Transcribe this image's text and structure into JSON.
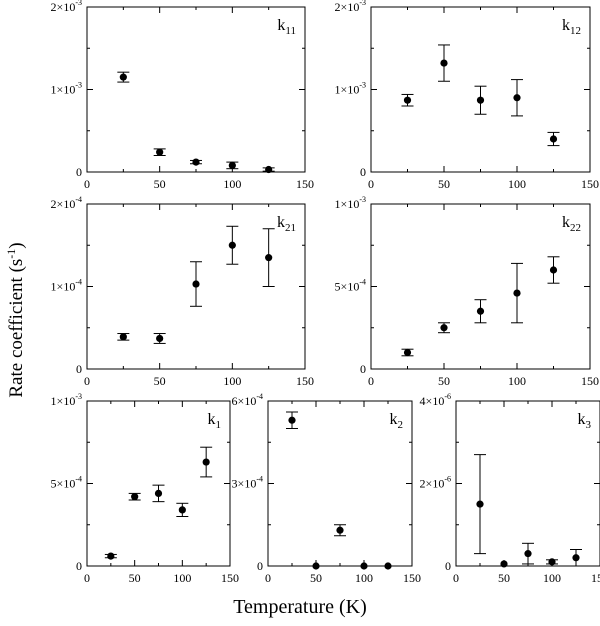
{
  "figure": {
    "ylabel": "Rate coefficient (s⁻¹)",
    "ylabel_main": "Rate coefficient (s",
    "ylabel_sup": "-1",
    "ylabel_close": ")",
    "xlabel": "Temperature (K)"
  },
  "chart_data": [
    {
      "type": "scatter",
      "panel": "k11",
      "label_main": "k",
      "label_sub": "11",
      "xlim": [
        0,
        150
      ],
      "xticks": [
        "0",
        "50",
        "100",
        "150"
      ],
      "ylim": [
        0,
        0.002
      ],
      "yticks": [
        {
          "value": 0,
          "mant": "0",
          "exp": ""
        },
        {
          "value": 0.001,
          "mant": "1×10",
          "exp": "-3"
        },
        {
          "value": 0.002,
          "mant": "2×10",
          "exp": "-3"
        }
      ],
      "points": [
        {
          "x": 25,
          "y": 0.00115,
          "err": 6e-05
        },
        {
          "x": 50,
          "y": 0.00024,
          "err": 4e-05
        },
        {
          "x": 75,
          "y": 0.00012,
          "err": 2e-05
        },
        {
          "x": 100,
          "y": 8e-05,
          "err": 4e-05
        },
        {
          "x": 125,
          "y": 3e-05,
          "err": 2e-05
        }
      ]
    },
    {
      "type": "scatter",
      "panel": "k12",
      "label_main": "k",
      "label_sub": "12",
      "xlim": [
        0,
        150
      ],
      "xticks": [
        "0",
        "50",
        "100",
        "150"
      ],
      "ylim": [
        0,
        0.002
      ],
      "yticks": [
        {
          "value": 0,
          "mant": "0",
          "exp": ""
        },
        {
          "value": 0.001,
          "mant": "1×10",
          "exp": "-3"
        },
        {
          "value": 0.002,
          "mant": "2×10",
          "exp": "-3"
        }
      ],
      "points": [
        {
          "x": 25,
          "y": 0.00087,
          "err": 7e-05
        },
        {
          "x": 50,
          "y": 0.00132,
          "err": 0.00022
        },
        {
          "x": 75,
          "y": 0.00087,
          "err": 0.00017
        },
        {
          "x": 100,
          "y": 0.0009,
          "err": 0.00022
        },
        {
          "x": 125,
          "y": 0.0004,
          "err": 8e-05
        }
      ]
    },
    {
      "type": "scatter",
      "panel": "k21",
      "label_main": "k",
      "label_sub": "21",
      "xlim": [
        0,
        150
      ],
      "xticks": [
        "0",
        "50",
        "100",
        "150"
      ],
      "ylim": [
        0,
        0.0002
      ],
      "yticks": [
        {
          "value": 0,
          "mant": "0",
          "exp": ""
        },
        {
          "value": 0.0001,
          "mant": "1×10",
          "exp": "-4"
        },
        {
          "value": 0.0002,
          "mant": "2×10",
          "exp": "-4"
        }
      ],
      "points": [
        {
          "x": 25,
          "y": 3.9e-05,
          "err": 4e-06
        },
        {
          "x": 50,
          "y": 3.7e-05,
          "err": 6e-06
        },
        {
          "x": 75,
          "y": 0.000103,
          "err": 2.7e-05
        },
        {
          "x": 100,
          "y": 0.00015,
          "err": 2.3e-05
        },
        {
          "x": 125,
          "y": 0.000135,
          "err": 3.5e-05
        }
      ]
    },
    {
      "type": "scatter",
      "panel": "k22",
      "label_main": "k",
      "label_sub": "22",
      "xlim": [
        0,
        150
      ],
      "xticks": [
        "0",
        "50",
        "100",
        "150"
      ],
      "ylim": [
        0,
        0.001
      ],
      "yticks": [
        {
          "value": 0,
          "mant": "0",
          "exp": ""
        },
        {
          "value": 0.0005,
          "mant": "5×10",
          "exp": "-4"
        },
        {
          "value": 0.001,
          "mant": "1×10",
          "exp": "-3"
        }
      ],
      "points": [
        {
          "x": 25,
          "y": 0.0001,
          "err": 2e-05
        },
        {
          "x": 50,
          "y": 0.00025,
          "err": 3e-05
        },
        {
          "x": 75,
          "y": 0.00035,
          "err": 7e-05
        },
        {
          "x": 100,
          "y": 0.00046,
          "err": 0.00018
        },
        {
          "x": 125,
          "y": 0.0006,
          "err": 8e-05
        }
      ]
    },
    {
      "type": "scatter",
      "panel": "k1",
      "label_main": "k",
      "label_sub": "1",
      "xlim": [
        0,
        150
      ],
      "xticks": [
        "0",
        "50",
        "100",
        "150"
      ],
      "ylim": [
        0,
        0.001
      ],
      "yticks": [
        {
          "value": 0,
          "mant": "0",
          "exp": ""
        },
        {
          "value": 0.0005,
          "mant": "5×10",
          "exp": "-4"
        },
        {
          "value": 0.001,
          "mant": "1×10",
          "exp": "-3"
        }
      ],
      "points": [
        {
          "x": 25,
          "y": 6e-05,
          "err": 1e-05
        },
        {
          "x": 50,
          "y": 0.00042,
          "err": 2e-05
        },
        {
          "x": 75,
          "y": 0.00044,
          "err": 5e-05
        },
        {
          "x": 100,
          "y": 0.00034,
          "err": 4e-05
        },
        {
          "x": 125,
          "y": 0.00063,
          "err": 9e-05
        }
      ]
    },
    {
      "type": "scatter",
      "panel": "k2",
      "label_main": "k",
      "label_sub": "2",
      "xlim": [
        0,
        150
      ],
      "xticks": [
        "0",
        "50",
        "100",
        "150"
      ],
      "ylim": [
        0,
        0.0006
      ],
      "yticks": [
        {
          "value": 0,
          "mant": "0",
          "exp": ""
        },
        {
          "value": 0.0003,
          "mant": "3×10",
          "exp": "-4"
        },
        {
          "value": 0.0006,
          "mant": "6×10",
          "exp": "-4"
        }
      ],
      "points": [
        {
          "x": 25,
          "y": 0.00053,
          "err": 3e-05
        },
        {
          "x": 50,
          "y": 0,
          "err": 0
        },
        {
          "x": 75,
          "y": 0.00013,
          "err": 2e-05
        },
        {
          "x": 100,
          "y": 0,
          "err": 0
        },
        {
          "x": 125,
          "y": 0,
          "err": 0
        }
      ]
    },
    {
      "type": "scatter",
      "panel": "k3",
      "label_main": "k",
      "label_sub": "3",
      "xlim": [
        0,
        150
      ],
      "xticks": [
        "0",
        "50",
        "100",
        "150"
      ],
      "ylim": [
        0,
        4e-06
      ],
      "yticks": [
        {
          "value": 0,
          "mant": "0",
          "exp": ""
        },
        {
          "value": 2e-06,
          "mant": "2×10",
          "exp": "-6"
        },
        {
          "value": 4e-06,
          "mant": "4×10",
          "exp": "-6"
        }
      ],
      "points": [
        {
          "x": 25,
          "y": 1.5e-06,
          "err": 1.2e-06
        },
        {
          "x": 50,
          "y": 5e-08,
          "err": 0
        },
        {
          "x": 75,
          "y": 3e-07,
          "err": 2.5e-07
        },
        {
          "x": 100,
          "y": 1e-07,
          "err": 5e-08
        },
        {
          "x": 125,
          "y": 2e-07,
          "err": 2e-07
        }
      ]
    }
  ]
}
